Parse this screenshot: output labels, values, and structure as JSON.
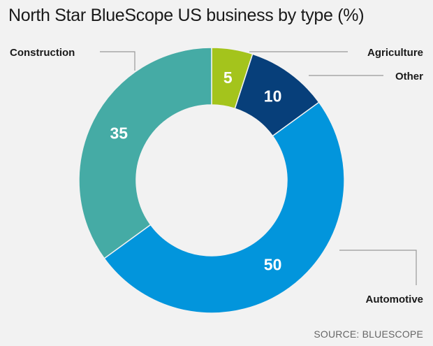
{
  "chart_data": {
    "type": "pie",
    "donut": true,
    "title": "North Star BlueScope US business by type (%)",
    "slices": [
      {
        "label": "Agriculture",
        "value": 5,
        "color": "#a4c41c"
      },
      {
        "label": "Other",
        "value": 10,
        "color": "#073f7a"
      },
      {
        "label": "Automotive",
        "value": 50,
        "color": "#0295dc"
      },
      {
        "label": "Construction",
        "value": 35,
        "color": "#45aba5"
      }
    ],
    "start_angle_deg": 0,
    "direction": "clockwise",
    "value_labels_on_slices": true,
    "legend": "none"
  },
  "source": "SOURCE: BLUESCOPE"
}
